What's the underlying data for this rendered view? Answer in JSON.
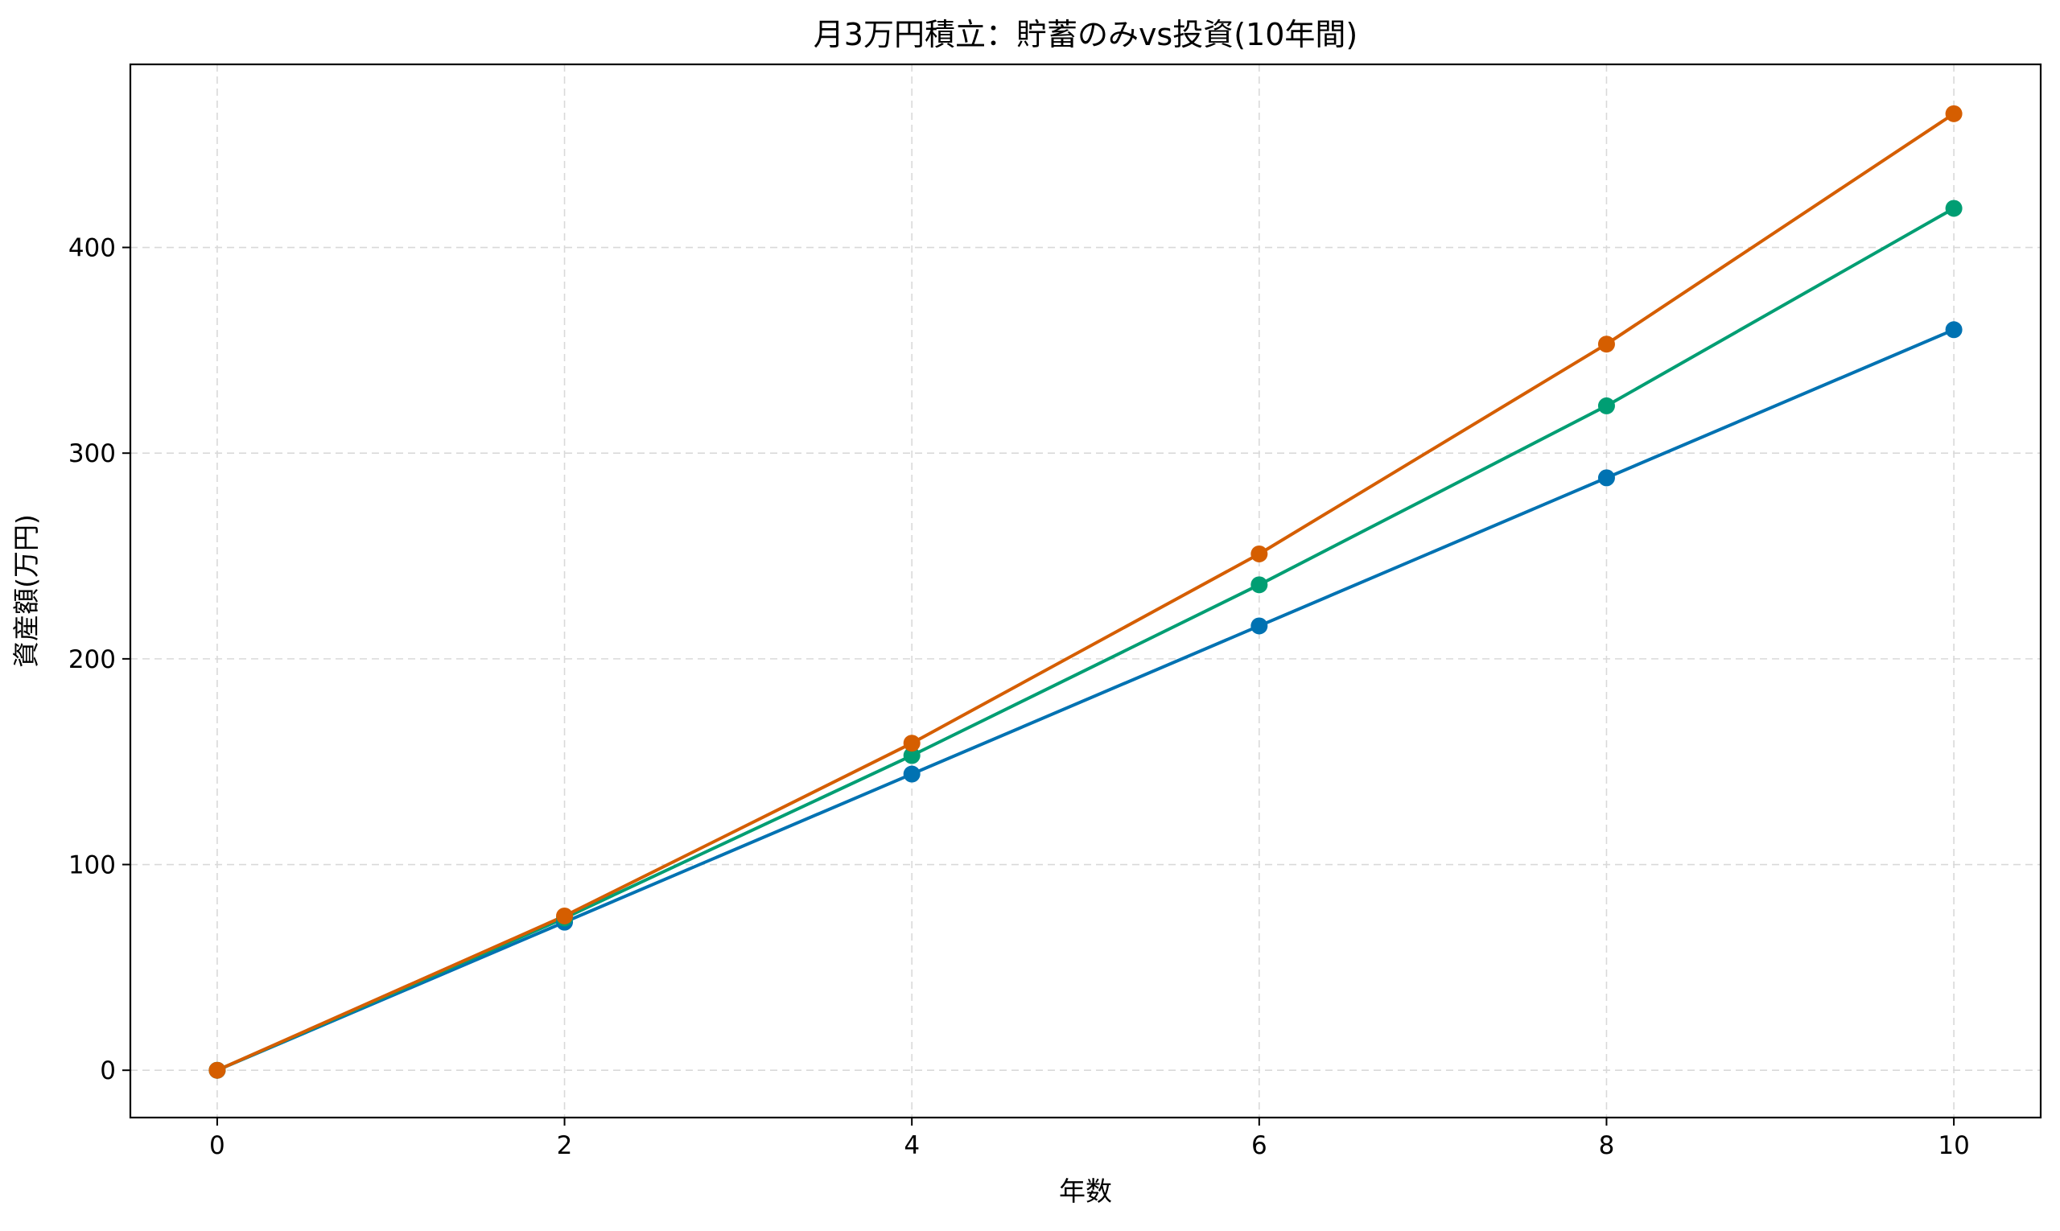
{
  "chart_data": {
    "type": "line",
    "title": "月3万円積立：貯蓄のみvs投資(10年間)",
    "xlabel": "年数",
    "ylabel": "資産額(万円)",
    "x": [
      0,
      2,
      4,
      6,
      8,
      10
    ],
    "x_ticks": [
      "0",
      "2",
      "4",
      "6",
      "8",
      "10"
    ],
    "y_ticks": [
      "0",
      "100",
      "200",
      "300",
      "400"
    ],
    "xlim": [
      -0.5,
      10.5
    ],
    "ylim": [
      -23,
      489
    ],
    "grid": true,
    "grid_style": "dashed",
    "legend": "none",
    "markers": "circle",
    "series": [
      {
        "color": "#0072B2",
        "values": [
          0,
          72,
          144,
          216,
          288,
          360
        ]
      },
      {
        "color": "#009E73",
        "values": [
          0,
          74,
          153,
          236,
          323,
          419
        ]
      },
      {
        "color": "#D55E00",
        "values": [
          0,
          75,
          159,
          251,
          353,
          465
        ]
      }
    ]
  }
}
